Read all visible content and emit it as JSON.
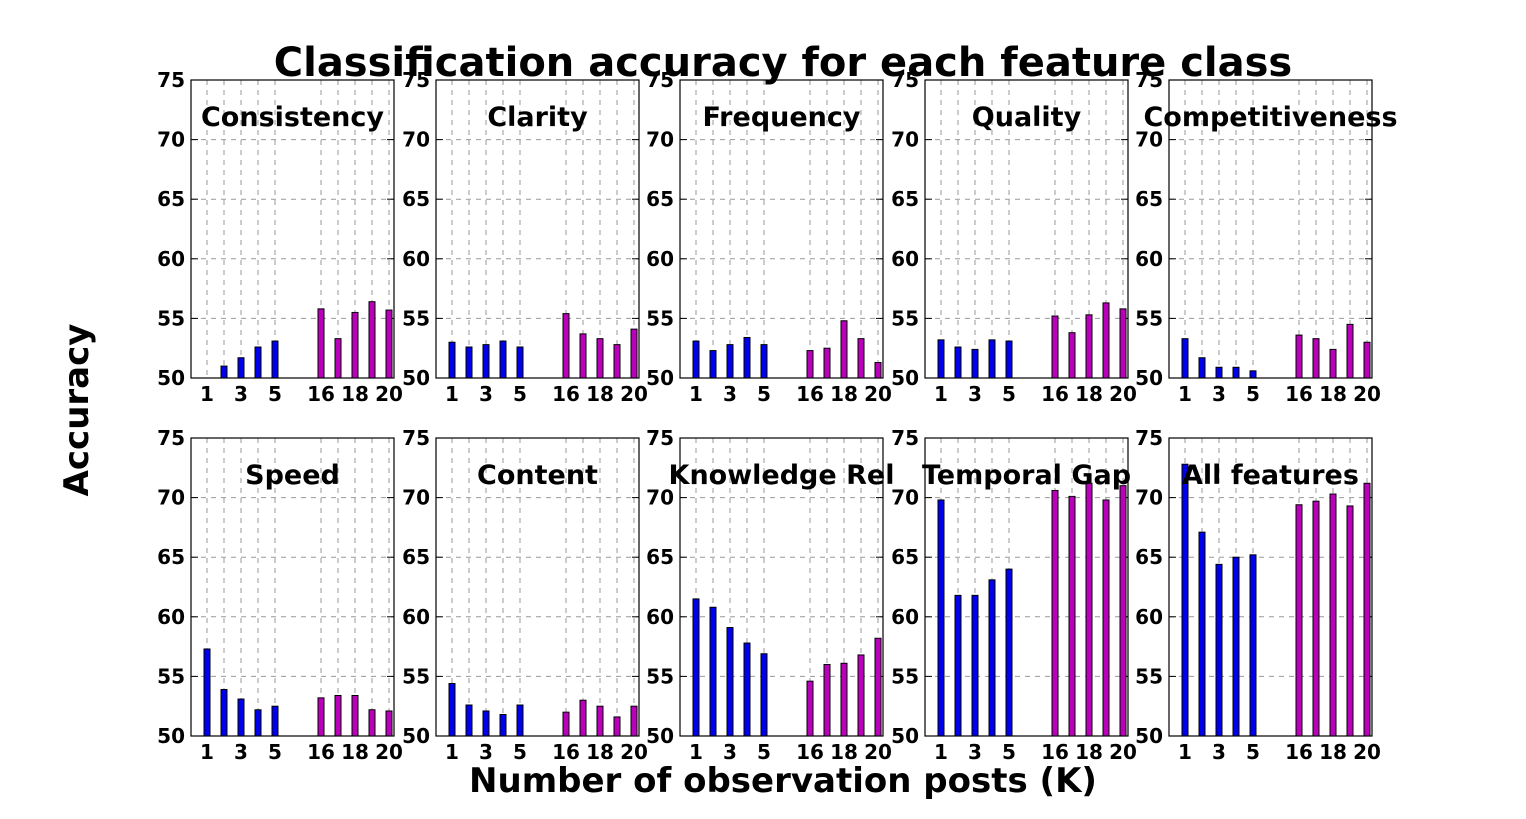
{
  "figure": {
    "title": "Classification accuracy for each feature class",
    "xlabel": "Number of observation posts (K)",
    "ylabel": "Accuracy"
  },
  "colors": {
    "group_low": "#0000ee",
    "group_high": "#bb00bb",
    "grid": "#999999"
  },
  "chart_data": [
    {
      "type": "bar",
      "title": "Consistency",
      "x": [
        1,
        2,
        3,
        4,
        5,
        16,
        17,
        18,
        19,
        20
      ],
      "values": [
        50.0,
        51.0,
        51.7,
        52.6,
        53.1,
        55.8,
        53.3,
        55.5,
        56.4,
        55.7
      ],
      "xticks": [
        "1",
        "3",
        "5",
        "16",
        "18",
        "20"
      ],
      "ylim": [
        50,
        75
      ],
      "yticks": [
        "50",
        "55",
        "60",
        "65",
        "70",
        "75"
      ],
      "grid": true
    },
    {
      "type": "bar",
      "title": "Clarity",
      "x": [
        1,
        2,
        3,
        4,
        5,
        16,
        17,
        18,
        19,
        20
      ],
      "values": [
        53.0,
        52.6,
        52.8,
        53.1,
        52.6,
        55.4,
        53.7,
        53.3,
        52.8,
        54.1
      ],
      "xticks": [
        "1",
        "3",
        "5",
        "16",
        "18",
        "20"
      ],
      "ylim": [
        50,
        75
      ],
      "yticks": [
        "50",
        "55",
        "60",
        "65",
        "70",
        "75"
      ],
      "grid": true
    },
    {
      "type": "bar",
      "title": "Frequency",
      "x": [
        1,
        2,
        3,
        4,
        5,
        16,
        17,
        18,
        19,
        20
      ],
      "values": [
        53.1,
        52.3,
        52.8,
        53.4,
        52.8,
        52.3,
        52.5,
        54.8,
        53.3,
        51.3
      ],
      "xticks": [
        "1",
        "3",
        "5",
        "16",
        "18",
        "20"
      ],
      "ylim": [
        50,
        75
      ],
      "yticks": [
        "50",
        "55",
        "60",
        "65",
        "70",
        "75"
      ],
      "grid": true
    },
    {
      "type": "bar",
      "title": "Quality",
      "x": [
        1,
        2,
        3,
        4,
        5,
        16,
        17,
        18,
        19,
        20
      ],
      "values": [
        53.2,
        52.6,
        52.4,
        53.2,
        53.1,
        55.2,
        53.8,
        55.3,
        56.3,
        55.8
      ],
      "xticks": [
        "1",
        "3",
        "5",
        "16",
        "18",
        "20"
      ],
      "ylim": [
        50,
        75
      ],
      "yticks": [
        "50",
        "55",
        "60",
        "65",
        "70",
        "75"
      ],
      "grid": true
    },
    {
      "type": "bar",
      "title": "Competitiveness",
      "x": [
        1,
        2,
        3,
        4,
        5,
        16,
        17,
        18,
        19,
        20
      ],
      "values": [
        53.3,
        51.7,
        50.9,
        50.9,
        50.6,
        53.6,
        53.3,
        52.4,
        54.5,
        53.0
      ],
      "xticks": [
        "1",
        "3",
        "5",
        "16",
        "18",
        "20"
      ],
      "ylim": [
        50,
        75
      ],
      "yticks": [
        "50",
        "55",
        "60",
        "65",
        "70",
        "75"
      ],
      "grid": true
    },
    {
      "type": "bar",
      "title": "Speed",
      "x": [
        1,
        2,
        3,
        4,
        5,
        16,
        17,
        18,
        19,
        20
      ],
      "values": [
        57.3,
        53.9,
        53.1,
        52.2,
        52.5,
        53.2,
        53.4,
        53.4,
        52.2,
        52.1
      ],
      "xticks": [
        "1",
        "3",
        "5",
        "16",
        "18",
        "20"
      ],
      "ylim": [
        50,
        75
      ],
      "yticks": [
        "50",
        "55",
        "60",
        "65",
        "70",
        "75"
      ],
      "grid": true
    },
    {
      "type": "bar",
      "title": "Content",
      "x": [
        1,
        2,
        3,
        4,
        5,
        16,
        17,
        18,
        19,
        20
      ],
      "values": [
        54.4,
        52.6,
        52.1,
        51.8,
        52.6,
        52.0,
        53.0,
        52.5,
        51.6,
        52.5
      ],
      "xticks": [
        "1",
        "3",
        "5",
        "16",
        "18",
        "20"
      ],
      "ylim": [
        50,
        75
      ],
      "yticks": [
        "50",
        "55",
        "60",
        "65",
        "70",
        "75"
      ],
      "grid": true
    },
    {
      "type": "bar",
      "title": "Knowledge Rel",
      "x": [
        1,
        2,
        3,
        4,
        5,
        16,
        17,
        18,
        19,
        20
      ],
      "values": [
        61.5,
        60.8,
        59.1,
        57.8,
        56.9,
        54.6,
        56.0,
        56.1,
        56.8,
        58.2
      ],
      "xticks": [
        "1",
        "3",
        "5",
        "16",
        "18",
        "20"
      ],
      "ylim": [
        50,
        75
      ],
      "yticks": [
        "50",
        "55",
        "60",
        "65",
        "70",
        "75"
      ],
      "grid": true
    },
    {
      "type": "bar",
      "title": "Temporal Gap",
      "x": [
        1,
        2,
        3,
        4,
        5,
        16,
        17,
        18,
        19,
        20
      ],
      "values": [
        69.8,
        61.8,
        61.8,
        63.1,
        64.0,
        70.6,
        70.1,
        71.2,
        69.8,
        71.0
      ],
      "xticks": [
        "1",
        "3",
        "5",
        "16",
        "18",
        "20"
      ],
      "ylim": [
        50,
        75
      ],
      "yticks": [
        "50",
        "55",
        "60",
        "65",
        "70",
        "75"
      ],
      "grid": true
    },
    {
      "type": "bar",
      "title": "All features",
      "x": [
        1,
        2,
        3,
        4,
        5,
        16,
        17,
        18,
        19,
        20
      ],
      "values": [
        72.8,
        67.1,
        64.4,
        65.0,
        65.2,
        69.4,
        69.7,
        70.3,
        69.3,
        71.2
      ],
      "xticks": [
        "1",
        "3",
        "5",
        "16",
        "18",
        "20"
      ],
      "ylim": [
        50,
        75
      ],
      "yticks": [
        "50",
        "55",
        "60",
        "65",
        "70",
        "75"
      ],
      "grid": true
    }
  ]
}
